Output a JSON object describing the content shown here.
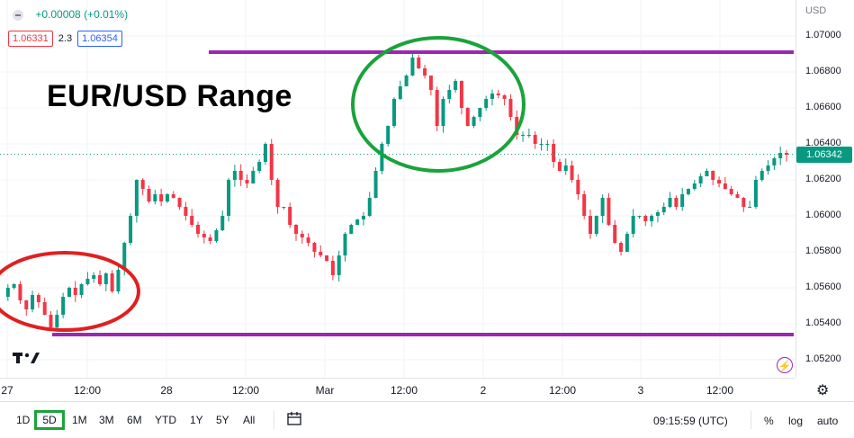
{
  "legend": {
    "change": "+0.00008 (+0.01%)",
    "bid": "1.06331",
    "spread": "2.3",
    "ask": "1.06354"
  },
  "annotation": {
    "title": "EUR/USD Range"
  },
  "price_axis": {
    "currency": "USD",
    "ticks": [
      "1.07000",
      "1.06800",
      "1.06600",
      "1.06400",
      "1.06200",
      "1.06000",
      "1.05800",
      "1.05600",
      "1.05400",
      "1.05200"
    ],
    "current_price": "1.06342"
  },
  "time_axis": {
    "ticks": [
      "27",
      "12:00",
      "28",
      "12:00",
      "Mar",
      "12:00",
      "2",
      "12:00",
      "3",
      "12:00"
    ]
  },
  "toolbar": {
    "ranges": [
      "1D",
      "5D",
      "1M",
      "3M",
      "6M",
      "YTD",
      "1Y",
      "5Y",
      "All"
    ],
    "selected_range": "5D",
    "clock": "09:15:59 (UTC)",
    "percent": "%",
    "log": "log",
    "auto": "auto"
  },
  "colors": {
    "up": "#089981",
    "down": "#f23645",
    "range_line": "#9c27b0",
    "green_circle": "#1aa33a",
    "red_circle": "#e02020"
  },
  "chart_data": {
    "type": "candlestick-line",
    "symbol": "EUR/USD",
    "ylim": [
      1.051,
      1.072
    ],
    "y_ticks": [
      1.07,
      1.068,
      1.066,
      1.064,
      1.062,
      1.06,
      1.058,
      1.056,
      1.054,
      1.052
    ],
    "x_ticks": [
      "27",
      "12:00",
      "28",
      "12:00",
      "Mar",
      "12:00",
      "2",
      "12:00",
      "3",
      "12:00"
    ],
    "current_price": 1.06342,
    "range_lines": {
      "upper": 1.0691,
      "lower": 1.0534
    },
    "series": [
      {
        "values": [
          1.0555,
          1.056,
          1.0562,
          1.0553,
          1.0548,
          1.0556,
          1.0552,
          1.0545,
          1.0538,
          1.0545,
          1.0555,
          1.056,
          1.0556,
          1.0562,
          1.0565,
          1.0567,
          1.0562,
          1.0568,
          1.0558,
          1.057,
          1.0585,
          1.06,
          1.062,
          1.0615,
          1.0608,
          1.0612,
          1.0608,
          1.0612,
          1.061,
          1.0605,
          1.06,
          1.0595,
          1.059,
          1.0588,
          1.0586,
          1.0592,
          1.06,
          1.062,
          1.0625,
          1.062,
          1.0618,
          1.0625,
          1.063,
          1.064,
          1.062,
          1.0605,
          1.0605,
          1.0595,
          1.059,
          1.0588,
          1.0585,
          1.058,
          1.0578,
          1.0575,
          1.0567,
          1.0578,
          1.059,
          1.0595,
          1.0598,
          1.06,
          1.061,
          1.0625,
          1.064,
          1.065,
          1.0665,
          1.0672,
          1.0678,
          1.0688,
          1.0682,
          1.0678,
          1.067,
          1.065,
          1.0665,
          1.067,
          1.0675,
          1.066,
          1.065,
          1.0655,
          1.066,
          1.0665,
          1.0668,
          1.0667,
          1.0665,
          1.0655,
          1.0645,
          1.0645,
          1.0645,
          1.064,
          1.064,
          1.064,
          1.063,
          1.0625,
          1.0628,
          1.062,
          1.0612,
          1.06,
          1.059,
          1.06,
          1.061,
          1.0595,
          1.0585,
          1.058,
          1.059,
          1.06,
          1.06,
          1.0597,
          1.06,
          1.0602,
          1.0605,
          1.061,
          1.0605,
          1.0612,
          1.0615,
          1.0618,
          1.0622,
          1.0625,
          1.062,
          1.0618,
          1.0615,
          1.0612,
          1.061,
          1.0605,
          1.0605,
          1.062,
          1.0625,
          1.0628,
          1.0632,
          1.0635,
          1.0634
        ]
      }
    ]
  }
}
